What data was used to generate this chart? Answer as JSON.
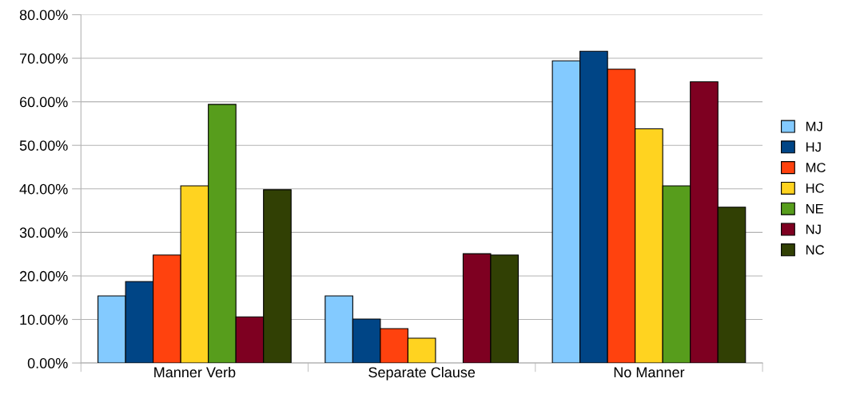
{
  "chart_data": {
    "type": "bar",
    "categories": [
      "Manner Verb",
      "Separate Clause",
      "No Manner"
    ],
    "series": [
      {
        "name": "MJ",
        "color": "#83caff",
        "values": [
          15.4,
          15.4,
          69.4
        ]
      },
      {
        "name": "HJ",
        "color": "#004586",
        "values": [
          18.7,
          10.1,
          71.6
        ]
      },
      {
        "name": "MC",
        "color": "#ff420e",
        "values": [
          24.8,
          7.9,
          67.5
        ]
      },
      {
        "name": "HC",
        "color": "#ffd320",
        "values": [
          40.7,
          5.7,
          53.8
        ]
      },
      {
        "name": "NE",
        "color": "#579d1c",
        "values": [
          59.4,
          null,
          40.7
        ]
      },
      {
        "name": "NJ",
        "color": "#7e0021",
        "values": [
          10.6,
          25.1,
          64.6
        ]
      },
      {
        "name": "NC",
        "color": "#314004",
        "values": [
          39.8,
          24.8,
          35.8
        ]
      }
    ],
    "ylim": [
      0,
      80
    ],
    "yticks": [
      {
        "value": 0,
        "label": "0.00%"
      },
      {
        "value": 10,
        "label": "10.00%"
      },
      {
        "value": 20,
        "label": "20.00%"
      },
      {
        "value": 30,
        "label": "30.00%"
      },
      {
        "value": 40,
        "label": "40.00%"
      },
      {
        "value": 50,
        "label": "50.00%"
      },
      {
        "value": 60,
        "label": "60.00%"
      },
      {
        "value": 70,
        "label": "70.00%"
      },
      {
        "value": 80,
        "label": "80.00%"
      }
    ],
    "grid": "y",
    "legend": "right"
  }
}
